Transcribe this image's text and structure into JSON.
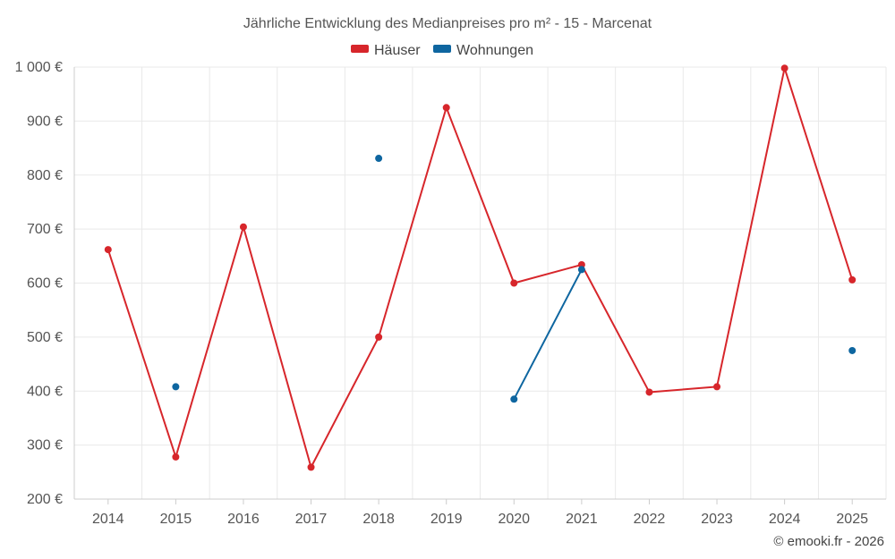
{
  "chart_data": {
    "type": "line",
    "title": "Jährliche Entwicklung des Medianpreises pro m² - 15 - Marcenat",
    "categories": [
      "2014",
      "2015",
      "2016",
      "2017",
      "2018",
      "2019",
      "2020",
      "2021",
      "2022",
      "2023",
      "2024",
      "2025"
    ],
    "series": [
      {
        "name": "Häuser",
        "color": "#d7262b",
        "values": [
          662,
          278,
          704,
          259,
          500,
          925,
          600,
          634,
          398,
          408,
          998,
          606
        ]
      },
      {
        "name": "Wohnungen",
        "color": "#0e66a0",
        "values": [
          null,
          408,
          null,
          null,
          831,
          null,
          385,
          625,
          null,
          null,
          null,
          475
        ]
      }
    ],
    "ylim": [
      200,
      1000
    ],
    "yticks": [
      200,
      300,
      400,
      500,
      600,
      700,
      800,
      900,
      1000
    ],
    "ytick_labels": [
      "200 €",
      "300 €",
      "400 €",
      "500 €",
      "600 €",
      "700 €",
      "800 €",
      "900 €",
      "1 000 €"
    ],
    "xlabel": "",
    "ylabel": "",
    "legend_position": "top-center",
    "grid": true
  },
  "credit": "© emooki.fr - 2026"
}
